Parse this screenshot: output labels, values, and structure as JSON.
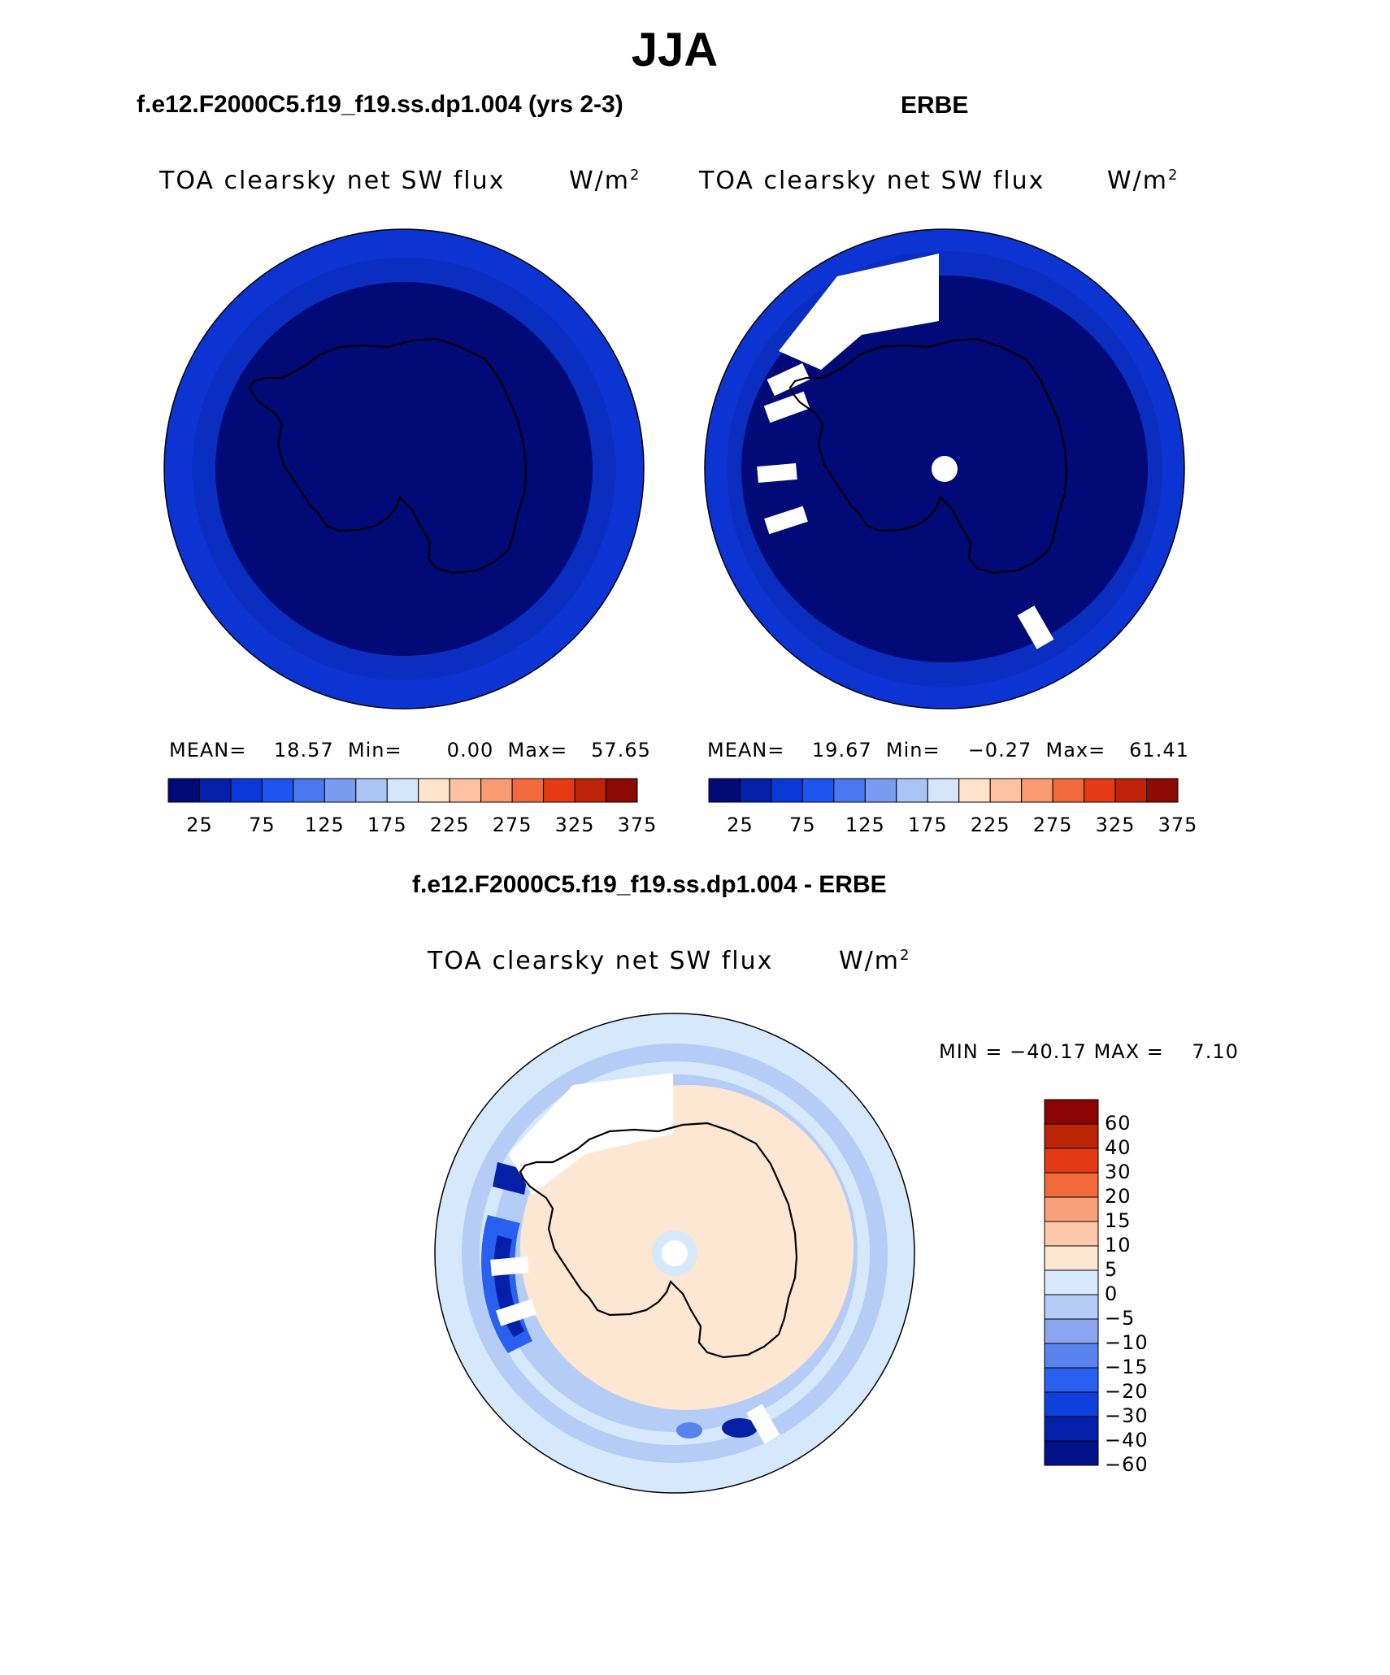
{
  "figure": {
    "title": "JJA",
    "left_header": "f.e12.F2000C5.f19_f19.ss.dp1.004 (yrs 2-3)",
    "right_header": "ERBE",
    "diff_header": "f.e12.F2000C5.f19_f19.ss.dp1.004 - ERBE"
  },
  "colors": {
    "abs_scale": [
      "#020a78",
      "#0420a8",
      "#0a38d8",
      "#1e54f0",
      "#4a78f0",
      "#7a9cf0",
      "#aac4f5",
      "#d4e6fa",
      "#fde2cc",
      "#fcc2a2",
      "#f89a72",
      "#f26a3c",
      "#e63a14",
      "#c02208",
      "#8c0a04"
    ],
    "diff_scale": [
      "#02118a",
      "#0420a8",
      "#1040dc",
      "#2a60f0",
      "#5882ec",
      "#8aa6f0",
      "#b4ccf6",
      "#d6e8fb",
      "#fde6d2",
      "#fcc8aa",
      "#f8a07a",
      "#f26a3c",
      "#e43a14",
      "#bc2408",
      "#8c0404"
    ],
    "antarctica_interior_abs": "#020a78",
    "ocean_band_abs": "#0c34d2",
    "diff_ocean": "#d6e8fb",
    "diff_interior": "#fde6d2"
  },
  "chart_data": [
    {
      "type": "heatmap",
      "panel": "model",
      "projection": "south-polar-stereographic",
      "title": "TOA clearsky net SW flux",
      "units": "W/m",
      "units_exp": "2",
      "stats": {
        "mean": "18.57",
        "min": "0.00",
        "max": "57.65"
      },
      "colorbar_ticks": [
        "25",
        "75",
        "125",
        "175",
        "225",
        "275",
        "325",
        "375"
      ],
      "levels": [
        0,
        25,
        50,
        75,
        100,
        125,
        150,
        175,
        200,
        225,
        250,
        275,
        300,
        325,
        350,
        375,
        400
      ]
    },
    {
      "type": "heatmap",
      "panel": "obs",
      "projection": "south-polar-stereographic",
      "title": "TOA clearsky net SW flux",
      "units": "W/m",
      "units_exp": "2",
      "stats": {
        "mean": "19.67",
        "min": "−0.27",
        "max": "61.41"
      },
      "colorbar_ticks": [
        "25",
        "75",
        "125",
        "175",
        "225",
        "275",
        "325",
        "375"
      ],
      "levels": [
        0,
        25,
        50,
        75,
        100,
        125,
        150,
        175,
        200,
        225,
        250,
        275,
        300,
        325,
        350,
        375,
        400
      ]
    },
    {
      "type": "heatmap",
      "panel": "difference",
      "projection": "south-polar-stereographic",
      "title": "TOA clearsky net SW flux",
      "units": "W/m",
      "units_exp": "2",
      "range_text": {
        "min_label": "MIN =",
        "min": "−40.17",
        "max_label": "MAX =",
        "max": "7.10"
      },
      "colorbar_ticks": [
        "60",
        "40",
        "30",
        "20",
        "15",
        "10",
        "5",
        "0",
        "−5",
        "−10",
        "−15",
        "−20",
        "−30",
        "−40",
        "−60"
      ]
    }
  ]
}
